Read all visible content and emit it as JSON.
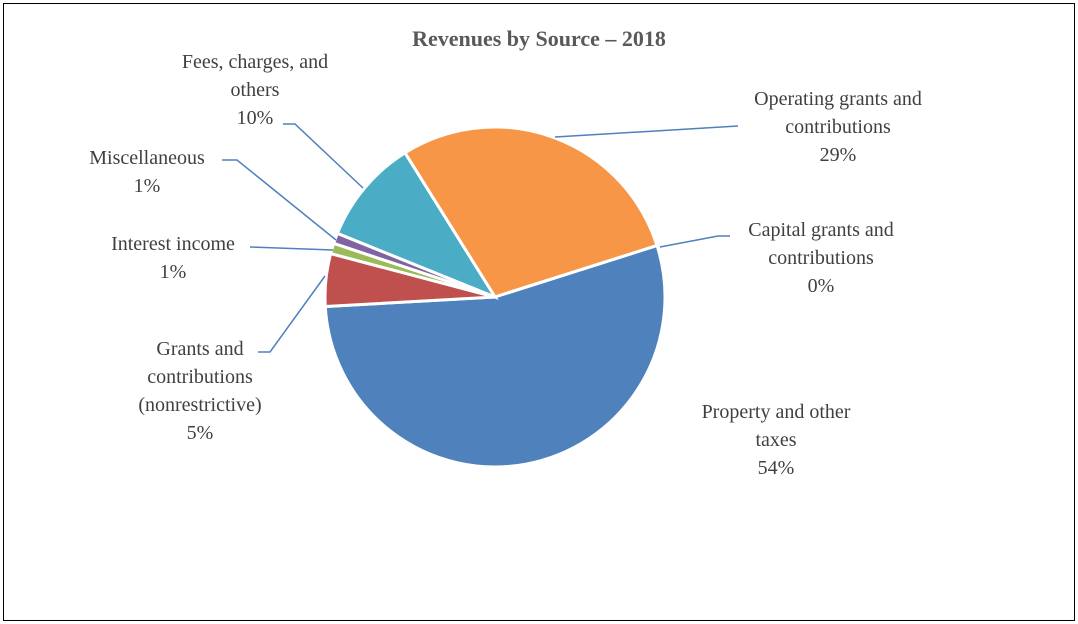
{
  "chart_data": {
    "type": "pie",
    "title": "Revenues by Source – 2018",
    "categories": [
      "Operating grants and contributions",
      "Capital grants and contributions",
      "Property and other taxes",
      "Grants and contributions (nonrestrictive)",
      "Interest income",
      "Miscellaneous",
      "Fees, charges, and others"
    ],
    "values": [
      29,
      0,
      54,
      5,
      1,
      1,
      10
    ],
    "value_labels": [
      "29%",
      "0%",
      "54%",
      "5%",
      "1%",
      "1%",
      "10%"
    ],
    "colors": [
      "#f79646",
      "#a5a5a5",
      "#4f81bd",
      "#c0504d",
      "#9bbb59",
      "#8064a2",
      "#4bacc6"
    ]
  }
}
